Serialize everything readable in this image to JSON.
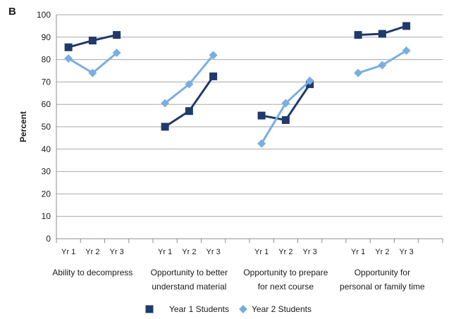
{
  "panel_label": "B",
  "chart_data": {
    "type": "line",
    "ylabel": "Percent",
    "ylim": [
      0,
      100
    ],
    "ytick_step": 10,
    "grid": true,
    "legend_position": "bottom",
    "years": [
      "Yr 1",
      "Yr 2",
      "Yr 3"
    ],
    "groups": [
      {
        "label_lines": [
          "Ability to decompress"
        ]
      },
      {
        "label_lines": [
          "Opportunity to better",
          "understand material"
        ]
      },
      {
        "label_lines": [
          "Opportunity to prepare",
          "for next course"
        ]
      },
      {
        "label_lines": [
          "Opportunity for",
          "personal or family time"
        ]
      }
    ],
    "series": [
      {
        "name": "Year 1 Students",
        "marker": "square",
        "color": "#1f3a6b",
        "values": [
          [
            85.5,
            88.5,
            91
          ],
          [
            50,
            57,
            72.5
          ],
          [
            55,
            53,
            69
          ],
          [
            91,
            91.5,
            95
          ]
        ]
      },
      {
        "name": "Year 2 Students",
        "marker": "diamond",
        "color": "#7aaee0",
        "values": [
          [
            80.5,
            74,
            83
          ],
          [
            60.5,
            69,
            82
          ],
          [
            42.5,
            60.5,
            70.5
          ],
          [
            74,
            77.5,
            84
          ]
        ]
      }
    ]
  }
}
